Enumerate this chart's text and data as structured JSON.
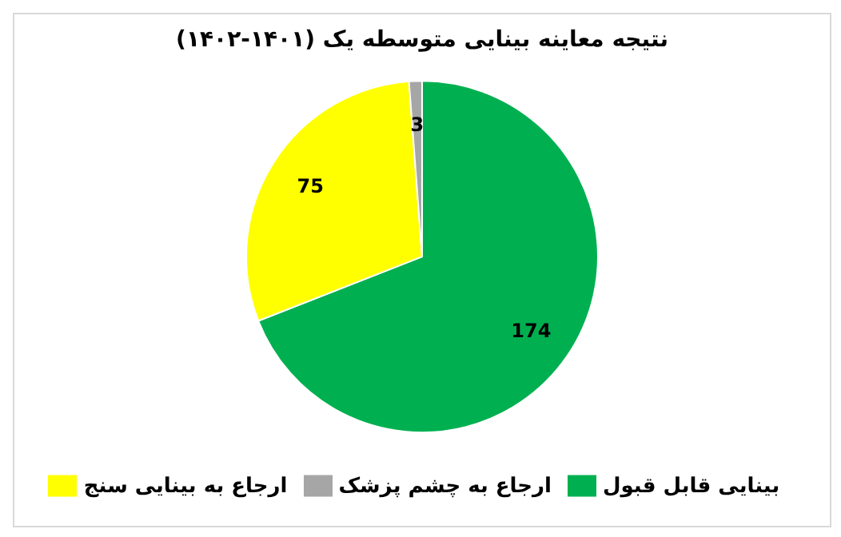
{
  "chart_data": {
    "type": "pie",
    "title": "نتیجه معاینه بینایی متوسطه یک (۱۴۰۱-۱۴۰۲)",
    "categories": [
      "بینایی قابل قبول",
      "ارجاع به بینایی سنج",
      "ارجاع به چشم پزشک"
    ],
    "values": [
      174,
      75,
      3
    ],
    "colors": [
      "#00b050",
      "#ffff00",
      "#a6a6a6"
    ],
    "data_labels": true,
    "legend": "bottom"
  }
}
